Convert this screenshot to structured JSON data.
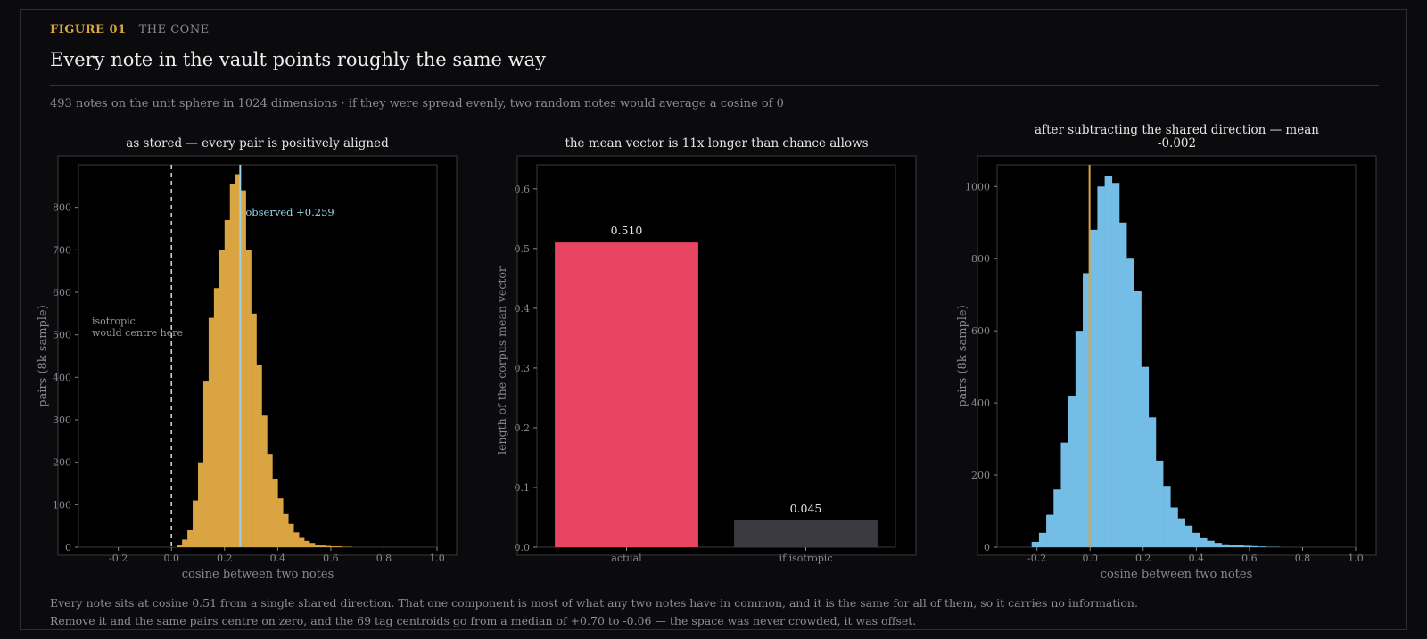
{
  "header": {
    "figure_label": "FIGURE 01",
    "section_label": "THE CONE",
    "title": "Every note in the vault points roughly the same way",
    "subtitle": "493 notes on the unit sphere in 1024 dimensions  ·  if they were spread evenly, two random notes would average a cosine of 0"
  },
  "caption": {
    "line1": "Every note sits at cosine 0.51 from a single shared direction. That one component is most of what any two notes have in common, and it is the same for all of them, so it carries no information.",
    "line2": "Remove it and the same pairs centre on zero, and the 69 tag centroids go from a median of +0.70 to -0.06 — the space was never crowded, it was offset."
  },
  "colors": {
    "background": "#0b0b0d",
    "plot_bg": "#000000",
    "accent_gold": "#d9a441",
    "bar_red": "#e84563",
    "bar_grey": "#3a3a40",
    "hist_blue": "#74bde6",
    "observed_line": "#9ad3ea"
  },
  "chart_data": [
    {
      "type": "bar",
      "histogram": true,
      "title": "as stored — every pair is positively aligned",
      "xlabel": "cosine between two notes",
      "ylabel": "pairs (8k sample)",
      "xlim": [
        -0.35,
        1.0
      ],
      "ylim": [
        0,
        900
      ],
      "xticks": [
        "-0.2",
        "0.0",
        "0.2",
        "0.4",
        "0.6",
        "0.8",
        "1.0"
      ],
      "yticks": [
        "0",
        "100",
        "200",
        "300",
        "400",
        "500",
        "600",
        "700",
        "800"
      ],
      "bin_width": 0.02,
      "bin_start": 0.02,
      "values": [
        5,
        18,
        40,
        110,
        200,
        390,
        540,
        610,
        700,
        770,
        855,
        878,
        840,
        700,
        550,
        430,
        310,
        220,
        160,
        115,
        78,
        55,
        35,
        22,
        15,
        10,
        6,
        4,
        3,
        2,
        2,
        1,
        1
      ],
      "color": "#d9a441",
      "isotropic_line": 0.0,
      "isotropic_annotation": [
        "isotropic",
        "would centre here"
      ],
      "observed_line": 0.259,
      "observed_annotation": "observed +0.259",
      "grid": false
    },
    {
      "type": "bar",
      "title": "the mean vector is 11x longer than chance allows",
      "ylabel": "length of the corpus mean vector",
      "categories": [
        "actual",
        "if isotropic"
      ],
      "values": [
        0.51,
        0.045
      ],
      "data_labels": [
        "0.510",
        "0.045"
      ],
      "colors": [
        "#e84563",
        "#3a3a40"
      ],
      "ylim": [
        0,
        0.64
      ],
      "yticks": [
        "0.0",
        "0.1",
        "0.2",
        "0.3",
        "0.4",
        "0.5",
        "0.6"
      ],
      "grid": false
    },
    {
      "type": "bar",
      "histogram": true,
      "title": "after subtracting the shared direction — mean\n-0.002",
      "title_lines": [
        "after subtracting the shared direction — mean",
        "-0.002"
      ],
      "xlabel": "cosine between two notes",
      "ylabel": "pairs (8k sample)",
      "xlim": [
        -0.35,
        1.0
      ],
      "ylim": [
        0,
        1060
      ],
      "xticks": [
        "-0.2",
        "0.0",
        "0.2",
        "0.4",
        "0.6",
        "0.8",
        "1.0"
      ],
      "yticks": [
        "0",
        "200",
        "400",
        "600",
        "800",
        "1000"
      ],
      "bin_width": 0.0275,
      "bin_start": -0.22,
      "values": [
        15,
        40,
        90,
        160,
        290,
        420,
        600,
        760,
        880,
        1000,
        1030,
        1010,
        900,
        800,
        710,
        500,
        360,
        240,
        170,
        110,
        80,
        60,
        40,
        25,
        18,
        12,
        8,
        6,
        5,
        4,
        3,
        2,
        1,
        1
      ],
      "color": "#74bde6",
      "mean_line": -0.002,
      "grid": false
    }
  ]
}
